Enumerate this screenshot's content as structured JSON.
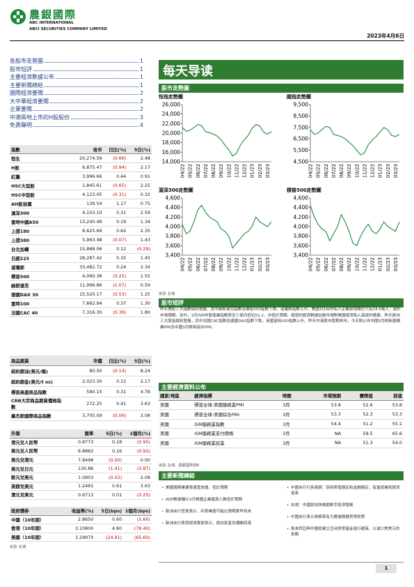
{
  "header": {
    "company_cn": "農銀國際",
    "company_en1": "ABC INTERNATIONAL",
    "company_en2": "ABCI SECURITIES COMPANY LIMITED",
    "date": "2023年4月6日"
  },
  "toc": [
    {
      "title": "各股市走勢圖",
      "page": "1"
    },
    {
      "title": "股市短評",
      "page": "1"
    },
    {
      "title": "主要經濟數據公布",
      "page": "1"
    },
    {
      "title": "主要新聞總結",
      "page": "1"
    },
    {
      "title": "國際經濟要聞",
      "page": "2"
    },
    {
      "title": "大中華經濟要聞",
      "page": "2"
    },
    {
      "title": "企業要聞",
      "page": "2"
    },
    {
      "title": "中港兩地上市的H股股份",
      "page": "3"
    },
    {
      "title": "免責聲明",
      "page": "4"
    }
  ],
  "index_table": {
    "header": [
      "指數",
      "收市",
      "日比(%)",
      "5日(%)"
    ],
    "rows": [
      [
        "恒生",
        "20,274.59",
        "(0.66)",
        "2.48"
      ],
      [
        "H股",
        "6,875.47",
        "(0.94)",
        "2.17"
      ],
      [
        "紅籌",
        "3,996.66",
        "0.44",
        "0.91"
      ],
      [
        "HSC大型股",
        "1,845.61",
        "(0.65)",
        "2.25"
      ],
      [
        "HSC中型股",
        "4,123.05",
        "(0.31)",
        "0.32"
      ],
      [
        "AH股溢價",
        "139.54",
        "1.17",
        "0.75"
      ],
      [
        "滬深300",
        "4,103.10",
        "0.31",
        "2.59"
      ],
      [
        "富時中國A50",
        "13,240.48",
        "0.19",
        "1.34"
      ],
      [
        "上證180",
        "8,625.69",
        "0.62",
        "2.35"
      ],
      [
        "上證380",
        "5,963.48",
        "(0.07)",
        "1.43"
      ],
      [
        "台北加權",
        "15,868.06",
        "0.12",
        "(0.29)"
      ],
      [
        "日經225",
        "28,287.42",
        "0.35",
        "1.45"
      ],
      [
        "道瓊斯",
        "33,482.72",
        "0.24",
        "2.34"
      ],
      [
        "標普500",
        "4,090.38",
        "(0.25)",
        "1.55"
      ],
      [
        "納斯達克",
        "11,996.86",
        "(1.07)",
        "0.59"
      ],
      [
        "德國DAX 30",
        "15,520.17",
        "(0.53)",
        "1.25"
      ],
      [
        "富時100",
        "7,662.94",
        "0.37",
        "1.30"
      ],
      [
        "法國CAC 40",
        "7,316.30",
        "(0.39)",
        "1.80"
      ]
    ]
  },
  "commodity_table": {
    "header": [
      "商品期貨",
      "市價",
      "日比(%)",
      "5日(%)"
    ],
    "rows": [
      [
        "紐約期油(美元/桶)",
        "80.50",
        "(0.14)",
        "8.24"
      ],
      [
        "紐約期金(美元/t oz)",
        "2,023.30",
        "0.12",
        "2.17"
      ],
      [
        "標普高盛商品指數",
        "590.15",
        "0.31",
        "4.78"
      ],
      [
        "CRB大宗商品期貨價格指數",
        "272.25",
        "0.41",
        "3.63"
      ],
      [
        "羅杰斯國際商品指數",
        "3,705.09",
        "(0.06)",
        "3.08"
      ]
    ]
  },
  "fx_table": {
    "header": [
      "外匯",
      "匯率",
      "5日(%)",
      "1個月(%)"
    ],
    "rows": [
      [
        "港元兌人民幣",
        "0.8773",
        "0.18",
        "(0.95)"
      ],
      [
        "美元兌人民幣",
        "6.8862",
        "0.16",
        "(0.92)"
      ],
      [
        "美元兌港元",
        "7.8498",
        "(0.00)",
        "0.00"
      ],
      [
        "美元兌日元",
        "130.86",
        "(1.41)",
        "(3.87)"
      ],
      [
        "歐元兌美元",
        "1.0903",
        "(0.02)",
        "2.08"
      ],
      [
        "英鎊兌美元",
        "1.2461",
        "0.61",
        "3.63"
      ],
      [
        "澳元兌美元",
        "0.6713",
        "0.01",
        "(0.25)"
      ]
    ]
  },
  "bond_table": {
    "header": [
      "政府債券",
      "收益率(%)",
      "5日(bps)",
      "1個月(bps)"
    ],
    "rows": [
      [
        "中國（10年期）",
        "2.8650",
        "0.60",
        "(5.60)"
      ],
      [
        "香港（10年期）",
        "3.10800",
        "4.80",
        "(78.40)"
      ],
      [
        "美國（10年期）",
        "3.29970",
        "(24.91)",
        "(65.60)"
      ]
    ]
  },
  "left_source": "來源: 彭博",
  "banner": "每天导读",
  "market_section": "股市走勢圖",
  "chart_data": [
    {
      "type": "line",
      "title": "恒指走勢圖",
      "color": "#1a8a3a",
      "categories": [
        "04/22",
        null,
        "05/22",
        null,
        "06/22",
        null,
        "07/22",
        null,
        "08/22",
        null,
        "09/22",
        null,
        "10/22",
        null,
        "11/22",
        null,
        "12/22",
        null,
        "01/23",
        null,
        "02/23",
        null,
        "03/23",
        null
      ],
      "values": [
        21200,
        20400,
        20600,
        21200,
        21800,
        21600,
        20300,
        20100,
        19800,
        19400,
        18600,
        17500,
        16500,
        15200,
        15800,
        17500,
        18600,
        19500,
        21000,
        21800,
        21500,
        20200,
        19800,
        20300
      ],
      "ylim": [
        14000,
        26000
      ],
      "yticks": [
        {
          "value": 14000,
          "label": "14,000"
        },
        {
          "value": 16000,
          "label": "16,000"
        },
        {
          "value": 18000,
          "label": "18,000"
        },
        {
          "value": 20000,
          "label": "20,000"
        },
        {
          "value": 22000,
          "label": "22,000"
        },
        {
          "value": 24000,
          "label": "24,000"
        },
        {
          "value": 26000,
          "label": "26,000"
        }
      ]
    },
    {
      "type": "line",
      "title": "國指走勢圖",
      "color": "#1a8a3a",
      "categories": [
        "04/22",
        null,
        "05/22",
        null,
        "06/22",
        null,
        "07/22",
        null,
        "08/22",
        null,
        "09/22",
        null,
        "10/22",
        null,
        "11/22",
        null,
        "12/22",
        null,
        "01/23",
        null,
        "02/23",
        null,
        "03/23",
        null
      ],
      "values": [
        7300,
        6900,
        7000,
        7300,
        7600,
        7500,
        6900,
        6800,
        6700,
        6500,
        6200,
        5900,
        5500,
        5100,
        5300,
        6000,
        6400,
        6700,
        7100,
        7500,
        7300,
        6800,
        6700,
        6900
      ],
      "ylim": [
        4500,
        9500
      ],
      "yticks": [
        {
          "value": 4500,
          "label": "4,500"
        },
        {
          "value": 5500,
          "label": "5,500"
        },
        {
          "value": 6500,
          "label": "6,500"
        },
        {
          "value": 7500,
          "label": "7,500"
        },
        {
          "value": 8500,
          "label": "8,500"
        },
        {
          "value": 9500,
          "label": "9,500"
        }
      ]
    },
    {
      "type": "line",
      "title": "滬深300走勢圖",
      "color": "#1a8a3a",
      "categories": [
        "04/22",
        null,
        "05/22",
        null,
        "06/22",
        null,
        "07/22",
        null,
        "08/22",
        null,
        "09/22",
        null,
        "10/22",
        null,
        "11/22",
        null,
        "12/22",
        null,
        "01/23",
        null,
        "02/23",
        null,
        "03/23",
        null
      ],
      "values": [
        4050,
        3850,
        3900,
        4100,
        4350,
        4450,
        4300,
        4200,
        4150,
        4100,
        3950,
        3900,
        3800,
        3550,
        3650,
        3750,
        3850,
        3900,
        4000,
        4200,
        4100,
        4050,
        4000,
        4100
      ],
      "ylim": [
        3400,
        4600
      ],
      "yticks": [
        {
          "value": 3400,
          "label": "3,400"
        },
        {
          "value": 3600,
          "label": "3,600"
        },
        {
          "value": 3800,
          "label": "3,800"
        },
        {
          "value": 4000,
          "label": "4,000"
        },
        {
          "value": 4200,
          "label": "4,200"
        },
        {
          "value": 4400,
          "label": "4,400"
        },
        {
          "value": 4600,
          "label": "4,600"
        }
      ]
    },
    {
      "type": "line",
      "title": "標普500走勢圖",
      "color": "#1a8a3a",
      "categories": [
        "04/22",
        null,
        "05/22",
        null,
        "06/22",
        null,
        "07/22",
        null,
        "08/22",
        null,
        "09/22",
        null,
        "10/22",
        null,
        "11/22",
        null,
        "12/22",
        null,
        "01/23",
        null,
        "02/23",
        null,
        "03/23",
        null
      ],
      "values": [
        4450,
        4200,
        4050,
        3950,
        3900,
        3700,
        3850,
        4000,
        4250,
        4100,
        3900,
        3650,
        3600,
        3800,
        3950,
        4050,
        3900,
        3850,
        3950,
        4100,
        4000,
        3950,
        3900,
        4100
      ],
      "ylim": [
        3400,
        4600
      ],
      "yticks": [
        {
          "value": 3400,
          "label": "3,400"
        },
        {
          "value": 3600,
          "label": "3,600"
        },
        {
          "value": 3800,
          "label": "3,800"
        },
        {
          "value": 4000,
          "label": "4,000"
        },
        {
          "value": 4200,
          "label": "4,200"
        },
        {
          "value": 4400,
          "label": "4,400"
        },
        {
          "value": 4600,
          "label": "4,600"
        }
      ]
    }
  ],
  "chart_source": "來源: 彭博",
  "comment_section": "股市短評",
  "comment": "昨天美股三大指數個別發展，其中納斯達克指數及標普500指數下跌，道瓊斯指數上升。美國3月ADP私人企業新增職位只有14.5萬人，遜於市場預期。另外，3月ISM非製造業指數跌至三個月低位51.2，亦低於預期。疲弱的經濟數據加劇市場對美國經濟陷入衰退的擔憂。昨天歐洲三大股指個別發展，其中法國CAC指數及德國DAX指數下跌，英國富時100指數上升。昨天中港股市假期休市，今天將公布中國3月財新服務業PMI及中國3月財新綜合PMI。",
  "econ_section": "主要經濟資料公布",
  "econ_table": {
    "header": [
      "國家/地區",
      "經濟指標",
      "時間",
      "市場預期",
      "實際值",
      "前值"
    ],
    "rows": [
      [
        "美國",
        "標普全球-美國服務業PMI",
        "3月",
        "53.8",
        "52.6",
        "53.8"
      ],
      [
        "美國",
        "標普全球-美國綜合PMI",
        "3月",
        "53.3",
        "52.3",
        "53.3"
      ],
      [
        "美國",
        "ISM服務業指數",
        "3月",
        "54.4",
        "51.2",
        "55.1"
      ],
      [
        "美國",
        "ISM服務業支付價格",
        "3月",
        "NA",
        "59.5",
        "65.6"
      ],
      [
        "美國",
        "ISM服務業就業",
        "3月",
        "NA",
        "51.3",
        "54.0"
      ]
    ]
  },
  "econ_source": "來源: 彭博，農銀國際證券",
  "news_section": "主要新聞總結",
  "news_left": [
    "美國服務業擴張速度放緩，低於預期",
    "ADP數據顯示3月美國企業僱員人數低於預期",
    "歐洲央行官員表示，利率峰值可能比預期更早到來",
    "歐洲央行首席經濟學家表示，將加息直到通脹回落"
  ],
  "news_right": [
    "中國央行行長易綱：保持幣值穩定和金融穩定，促進就業和經濟增長",
    "央視：中國將加快推動數字經濟發展",
    "中國央行表示將精準有力實施穩健貨幣政策",
    "馬來西亞與中國就建立亞洲貨幣基金進行磋商，以減少對美元的依賴"
  ],
  "page_number": "1"
}
